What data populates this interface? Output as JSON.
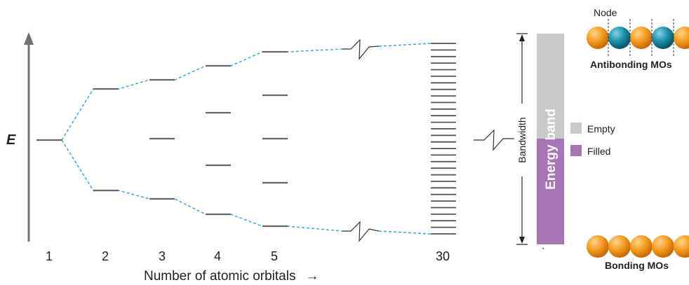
{
  "energy_axis_label": "E",
  "x_axis_label": "Number of atomic orbitals",
  "x_axis_arrow": "→",
  "columns": [
    "1",
    "2",
    "3",
    "4",
    "5",
    "30"
  ],
  "band": {
    "vertical_text_1": "Energy",
    "vertical_text_2": "band",
    "bandwidth_label": "Bandwidth",
    "stray_mark": "`",
    "legend": [
      {
        "label": "Empty",
        "color": "#c8c9cb"
      },
      {
        "label": "Filled",
        "color": "#a774b5"
      }
    ]
  },
  "mo": {
    "node_label": "Node",
    "antibonding_label": "Antibonding MOs",
    "bonding_label": "Bonding MOs",
    "antibonding_colors": [
      "orange",
      "teal",
      "orange",
      "teal",
      "orange"
    ],
    "bonding_colors": [
      "orange",
      "orange",
      "orange",
      "orange",
      "orange"
    ]
  },
  "colors": {
    "orbital_level": "#666666",
    "connector": "#2aa3e0",
    "orange": "#f39a1c",
    "teal": "#1a8ea6",
    "empty": "#c8c9cb",
    "filled": "#a774b5"
  }
}
